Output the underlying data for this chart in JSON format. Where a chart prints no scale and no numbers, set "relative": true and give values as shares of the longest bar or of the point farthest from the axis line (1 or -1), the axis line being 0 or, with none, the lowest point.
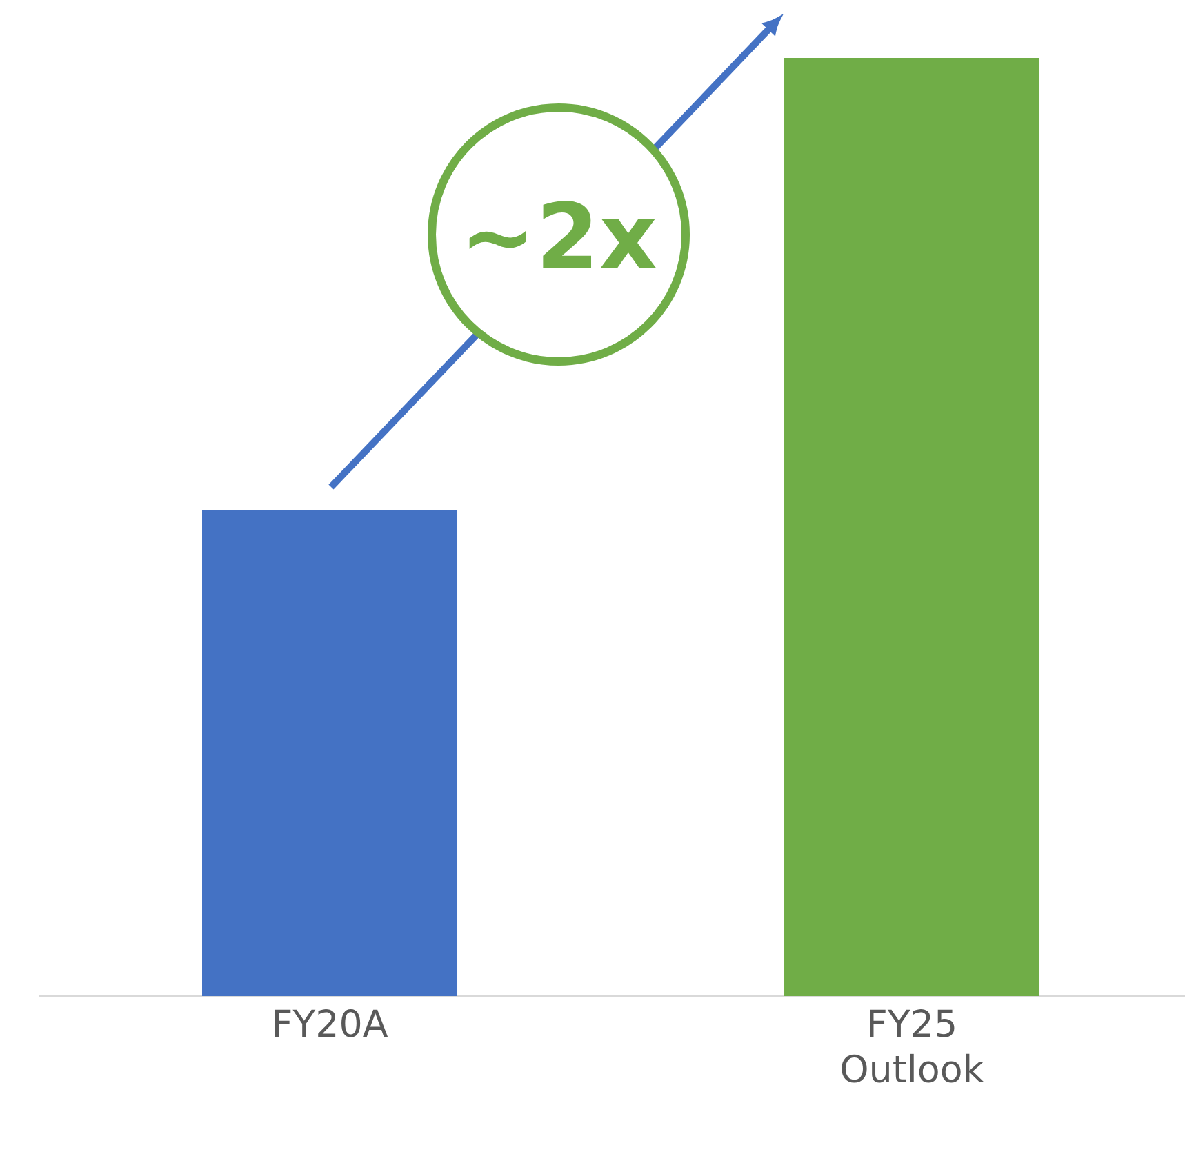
{
  "chart_data": {
    "type": "bar",
    "relative": true,
    "categories": [
      "FY20A",
      "FY25 Outlook"
    ],
    "values": [
      0.518,
      1
    ],
    "colors": [
      "#4472c4",
      "#70ad47"
    ],
    "annotations": [
      "~2x"
    ]
  }
}
